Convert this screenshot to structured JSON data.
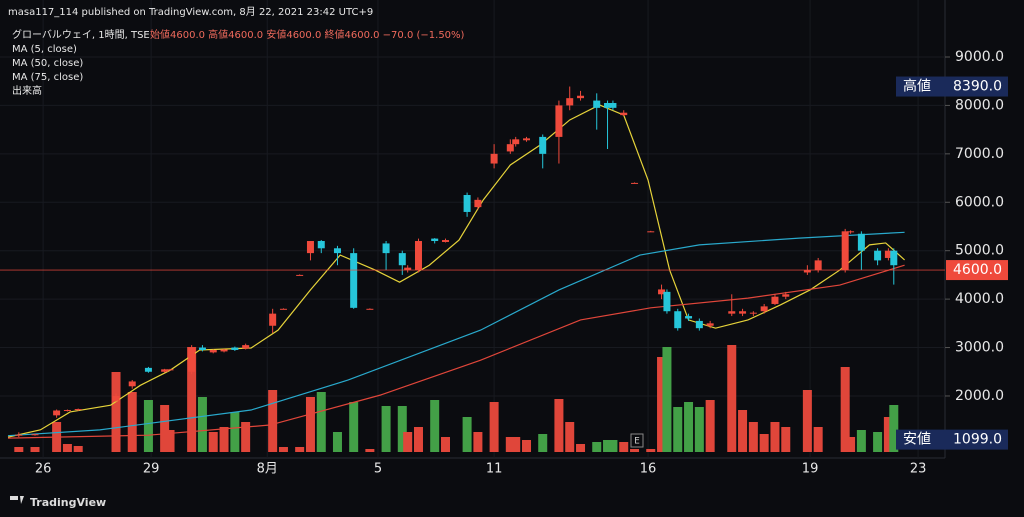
{
  "header": {
    "published": "masa117_114 published on TradingView.com, 8月 22, 2021 23:42 UTC+9",
    "symbol": "グローバルウェイ, 1時間, TSE",
    "ohlc": "始値4600.0 高値4600.0 安値4600.0 終値4600.0 −70.0 (−1.50%)",
    "indicators": [
      "MA (5, close)",
      "MA (50, close)",
      "MA (75, close)",
      "出来高"
    ]
  },
  "footer": {
    "brand": "TradingView",
    "event": "E"
  },
  "chart_data": {
    "type": "candlestick",
    "up_color": "#ef4a3c",
    "down_color": "#26c6da",
    "volume_up_color": "#e0463a",
    "volume_down_color": "#43a047",
    "xlim": [
      0,
      172
    ],
    "xticks": [
      {
        "value": 6.5,
        "label": "26"
      },
      {
        "value": 26.5,
        "label": "29"
      },
      {
        "value": 48,
        "label": "8月"
      },
      {
        "value": 68.5,
        "label": "5"
      },
      {
        "value": 90,
        "label": "11"
      },
      {
        "value": 118.5,
        "label": "16"
      },
      {
        "value": 148.5,
        "label": "19"
      },
      {
        "value": 168.5,
        "label": "23"
      }
    ],
    "ylim": [
      843,
      10177
    ],
    "yticks": [
      {
        "value": 2000,
        "label": "2000.0"
      },
      {
        "value": 3000,
        "label": "3000.0"
      },
      {
        "value": 4000,
        "label": "4000.0"
      },
      {
        "value": 5000,
        "label": "5000.0"
      },
      {
        "value": 6000,
        "label": "6000.0"
      },
      {
        "value": 7000,
        "label": "7000.0"
      },
      {
        "value": 8000,
        "label": "8000.0"
      },
      {
        "value": 9000,
        "label": "9000.0"
      }
    ],
    "volume_lim": [
      0,
      130
    ],
    "candles": {
      "x": [
        2,
        5,
        9,
        11,
        13,
        20,
        23,
        26,
        29,
        30,
        34,
        36,
        38,
        40,
        42,
        44,
        49,
        51,
        54,
        56,
        58,
        61,
        64,
        67,
        70,
        73,
        74,
        76,
        79,
        81,
        85,
        87,
        90,
        93,
        94,
        96,
        99,
        102,
        104,
        106,
        109,
        111,
        112,
        114,
        116,
        119,
        121,
        122,
        124,
        126,
        128,
        130,
        134,
        136,
        138,
        140,
        142,
        144,
        148,
        150,
        155,
        156,
        158,
        161,
        163,
        164
      ],
      "open": [
        1200,
        1200,
        1600,
        1700,
        1710,
        1900,
        2200,
        2580,
        2500,
        2540,
        2500,
        3000,
        2900,
        2920,
        3000,
        2980,
        3450,
        3800,
        4500,
        4950,
        5200,
        5050,
        4950,
        3800,
        5150,
        4950,
        4600,
        4600,
        5250,
        5180,
        6150,
        5900,
        6800,
        7050,
        7200,
        7280,
        7350,
        7350,
        8000,
        8150,
        8100,
        8050,
        8050,
        7800,
        6400,
        5400,
        4100,
        4150,
        3750,
        3650,
        3550,
        3450,
        3700,
        3700,
        3700,
        3750,
        3900,
        4050,
        4550,
        4600,
        4600,
        5380,
        5350,
        5000,
        4850,
        5000
      ],
      "high": [
        1250,
        1220,
        1720,
        1720,
        1740,
        2050,
        2330,
        2600,
        2560,
        2560,
        3050,
        3050,
        2960,
        2970,
        3020,
        3080,
        3800,
        3810,
        4510,
        5200,
        5220,
        5100,
        5050,
        3810,
        5200,
        5000,
        4700,
        5250,
        5260,
        5250,
        6200,
        6100,
        7200,
        7300,
        7350,
        7350,
        7400,
        8100,
        8390,
        8300,
        8250,
        8100,
        8100,
        7900,
        6410,
        5410,
        4300,
        4200,
        3800,
        3700,
        3600,
        3550,
        4100,
        3800,
        3750,
        3900,
        4100,
        4150,
        4700,
        4850,
        5450,
        5420,
        5400,
        5050,
        5050,
        5050
      ],
      "low": [
        1150,
        1180,
        1550,
        1680,
        1690,
        1880,
        2150,
        2480,
        2480,
        2520,
        2450,
        2920,
        2880,
        2900,
        2930,
        2960,
        3300,
        3790,
        4490,
        4800,
        4950,
        4700,
        3800,
        3790,
        4600,
        4500,
        4550,
        4550,
        5150,
        5170,
        5700,
        5850,
        6700,
        7000,
        7150,
        7250,
        6700,
        6800,
        7900,
        8100,
        7500,
        7100,
        7900,
        7780,
        6390,
        5390,
        4000,
        3700,
        3350,
        3550,
        3350,
        3400,
        3650,
        3650,
        3650,
        3700,
        3880,
        4000,
        4500,
        4550,
        4550,
        5350,
        4600,
        4700,
        4800,
        4300
      ],
      "close": [
        1200,
        1210,
        1700,
        1710,
        1730,
        2000,
        2300,
        2500,
        2550,
        2550,
        3000,
        2950,
        2950,
        2960,
        2950,
        3050,
        3700,
        3800,
        4500,
        5200,
        5050,
        4950,
        3820,
        3800,
        4950,
        4700,
        4650,
        5200,
        5200,
        5220,
        5800,
        6050,
        7000,
        7200,
        7300,
        7320,
        7000,
        8000,
        8150,
        8200,
        7950,
        7950,
        7950,
        7850,
        6400,
        5400,
        4200,
        3750,
        3400,
        3600,
        3400,
        3500,
        3750,
        3750,
        3720,
        3850,
        4050,
        4100,
        4600,
        4800,
        5400,
        5400,
        5000,
        4800,
        5000,
        4700
      ],
      "volume": [
        5,
        5,
        30,
        8,
        6,
        80,
        60,
        52,
        47,
        22,
        105,
        55,
        20,
        25,
        40,
        30,
        62,
        5,
        5,
        55,
        60,
        20,
        50,
        3,
        46,
        46,
        20,
        25,
        52,
        15,
        35,
        20,
        50,
        15,
        15,
        12,
        18,
        53,
        30,
        8,
        10,
        12,
        12,
        10,
        3,
        3,
        95,
        105,
        45,
        50,
        45,
        52,
        107,
        42,
        30,
        18,
        30,
        25,
        62,
        25,
        85,
        15,
        22,
        20,
        35,
        47
      ]
    },
    "series": [
      {
        "name": "MA (5, close)",
        "color": "#e6d33a",
        "x": [
          0,
          6,
          11.5,
          19,
          24.5,
          30,
          35.5,
          45,
          50,
          56,
          61.5,
          68,
          72.5,
          78,
          83.5,
          88,
          93,
          98.5,
          104,
          109.5,
          114,
          118.5,
          122.5,
          126,
          131,
          137,
          143,
          148.5,
          154,
          159.5,
          162.5,
          166
        ],
        "values": [
          1150,
          1300,
          1670,
          1810,
          2220,
          2530,
          2950,
          2990,
          3360,
          4190,
          4910,
          4600,
          4350,
          4700,
          5220,
          6050,
          6770,
          7180,
          7700,
          8010,
          7800,
          6460,
          4600,
          3570,
          3400,
          3570,
          3880,
          4190,
          4600,
          5120,
          5160,
          4810
        ]
      },
      {
        "name": "MA (50, close)",
        "color": "#29a9cc",
        "x": [
          0,
          17,
          45,
          63,
          87.5,
          102,
          117,
          128,
          146.5,
          166
        ],
        "values": [
          1180,
          1300,
          1710,
          2330,
          3360,
          4190,
          4910,
          5120,
          5260,
          5380
        ]
      },
      {
        "name": "MA (75, close)",
        "color": "#e0463a",
        "x": [
          0,
          26,
          48.5,
          69,
          87.5,
          106,
          119,
          137,
          154,
          166
        ],
        "values": [
          1130,
          1190,
          1400,
          2020,
          2740,
          3570,
          3820,
          4020,
          4290,
          4700
        ]
      }
    ],
    "last": {
      "value": 4600,
      "value_label": "4600.0",
      "color": "#ef4a3c"
    },
    "high": {
      "label": "高値",
      "value": 8390,
      "value_label": "8390.0"
    },
    "low": {
      "label": "安値",
      "value": 1099,
      "value_label": "1099.0"
    }
  }
}
